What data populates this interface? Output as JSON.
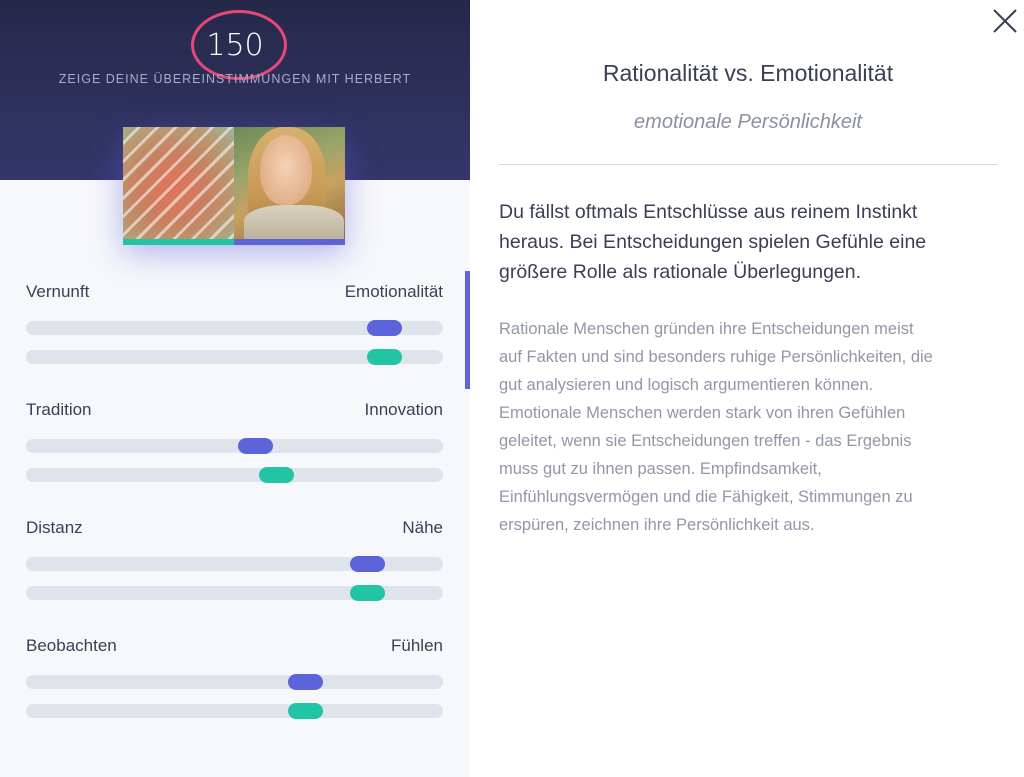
{
  "header": {
    "score": "150",
    "subtitle": "ZEIGE DEINE ÜBEREINSTIMMUNGEN MIT HERBERT"
  },
  "colors": {
    "accent_blue": "#5d63d8",
    "accent_green": "#22c4a6",
    "score_ring": "#e64979",
    "hero_bg": "#2a2c52"
  },
  "dimensions": [
    {
      "left_label": "Vernunft",
      "right_label": "Emotionalität",
      "blue_value": 0.86,
      "green_value": 0.86
    },
    {
      "left_label": "Tradition",
      "right_label": "Innovation",
      "blue_value": 0.55,
      "green_value": 0.6
    },
    {
      "left_label": "Distanz",
      "right_label": "Nähe",
      "blue_value": 0.82,
      "green_value": 0.82
    },
    {
      "left_label": "Beobachten",
      "right_label": "Fühlen",
      "blue_value": 0.67,
      "green_value": 0.67
    }
  ],
  "detail": {
    "title": "Rationalität vs. Emotionalität",
    "subtitle": "emotionale Persönlichkeit",
    "lead_lines": [
      "Du fällst oftmals Entschlüsse aus reinem Instinkt",
      "heraus. Bei Entscheidungen spielen Gefühle eine",
      "größere Rolle als rationale Überlegungen."
    ],
    "body_lines": [
      "Rationale Menschen gründen ihre Entscheidungen meist",
      "auf Fakten und sind besonders ruhige Persönlichkeiten, die",
      "gut analysieren und logisch argumentieren können.",
      "Emotionale Menschen werden stark von ihren Gefühlen",
      "geleitet, wenn sie Entscheidungen treffen - das Ergebnis",
      "muss gut zu ihnen passen. Empfindsamkeit,",
      "Einfühlungsvermögen und die Fähigkeit, Stimmungen zu",
      "erspüren, zeichnen ihre Persönlichkeit aus."
    ]
  },
  "icons": {
    "close": "close-icon"
  }
}
